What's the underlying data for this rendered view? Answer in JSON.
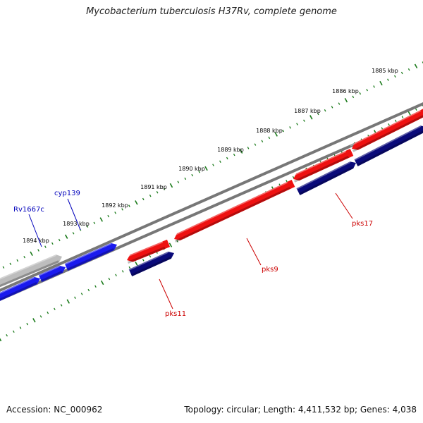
{
  "title": "Mycobacterium tuberculosis H37Rv, complete genome",
  "accession": "Accession: NC_000962",
  "summary": "Topology: circular; Length: 4,411,532 bp; Genes: 4,038",
  "colors": {
    "backbone": "#777777",
    "ruler": "#1a7a1a",
    "forward_highlight": "#ee1111",
    "reverse_highlight": "#0a0a7a",
    "forward_other": "#1a1aee",
    "reverse_other": "#bdbdbd",
    "label_red": "#cc0000",
    "label_blue": "#0000bb"
  },
  "scale_labels": [
    "1885 kbp",
    "1886 kbp",
    "1887 kbp",
    "1888 kbp",
    "1889 kbp",
    "1890 kbp",
    "1891 kbp",
    "1892 kbp",
    "1893 kbp",
    "1894 kbp"
  ],
  "gene_labels": [
    {
      "name": "pks17",
      "color": "red"
    },
    {
      "name": "pks9",
      "color": "red"
    },
    {
      "name": "pks11",
      "color": "red"
    },
    {
      "name": "cyp139",
      "color": "blue"
    },
    {
      "name": "Rv1667c",
      "color": "blue"
    }
  ]
}
